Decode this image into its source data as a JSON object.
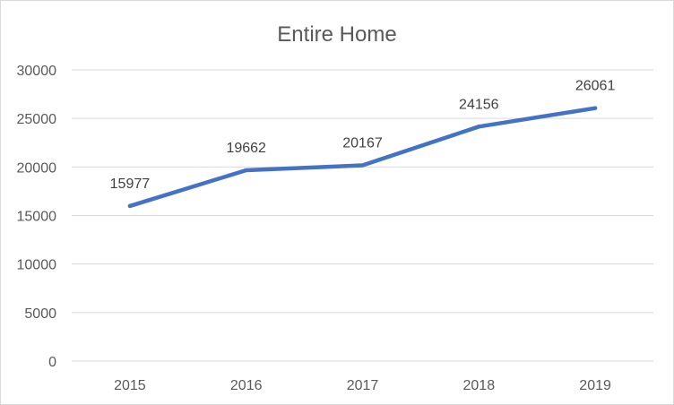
{
  "chart_data": {
    "type": "line",
    "title": "Entire Home",
    "xlabel": "",
    "ylabel": "",
    "categories": [
      "2015",
      "2016",
      "2017",
      "2018",
      "2019"
    ],
    "series": [
      {
        "values": [
          15977,
          19662,
          20167,
          24156,
          26061
        ],
        "color": "#4472C4"
      }
    ],
    "ylim": [
      0,
      30000
    ],
    "yticks": [
      "0",
      "5000",
      "10000",
      "15000",
      "20000",
      "25000",
      "30000"
    ],
    "grid": true,
    "legend": "none",
    "data_labels": true
  }
}
